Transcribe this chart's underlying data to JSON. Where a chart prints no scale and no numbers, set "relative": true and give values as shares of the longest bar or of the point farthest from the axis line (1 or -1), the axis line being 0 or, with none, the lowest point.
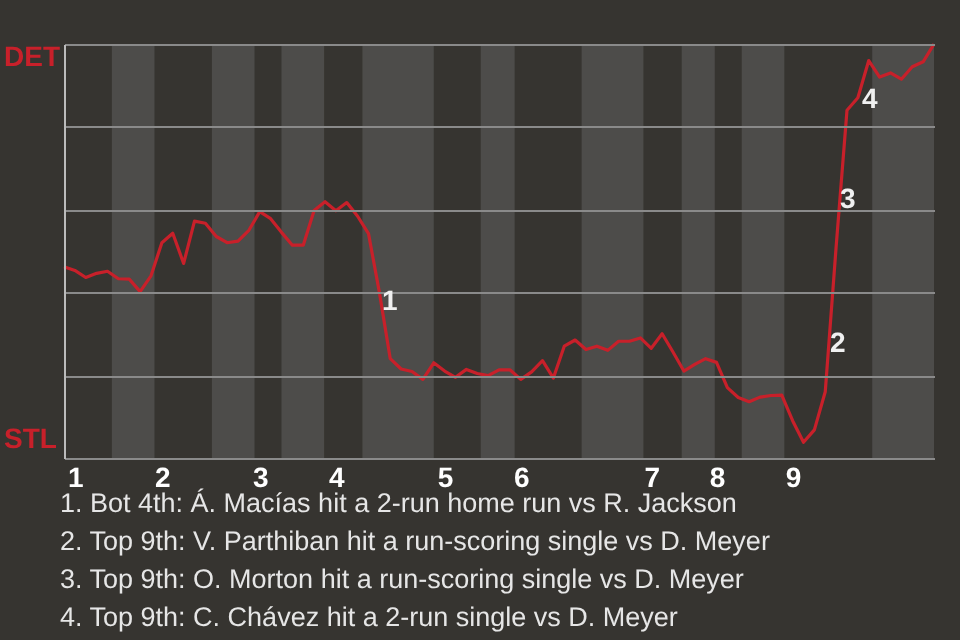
{
  "chart_data": {
    "type": "line",
    "relative": true,
    "categories": [
      null,
      "1",
      null,
      null,
      null,
      null,
      null,
      null,
      null,
      "2",
      null,
      null,
      null,
      null,
      null,
      null,
      null,
      null,
      "3",
      null,
      null,
      null,
      null,
      null,
      null,
      "4",
      null,
      null,
      null,
      null,
      null,
      null,
      null,
      null,
      null,
      "5",
      null,
      null,
      null,
      null,
      null,
      null,
      "6",
      null,
      null,
      null,
      null,
      null,
      null,
      null,
      null,
      null,
      null,
      null,
      "7",
      null,
      null,
      null,
      null,
      null,
      "8",
      null,
      null,
      null,
      null,
      null,
      null,
      "9",
      null,
      null,
      null,
      null,
      null,
      null,
      null,
      null,
      null,
      null,
      null,
      null,
      null
    ],
    "series": [
      {
        "color": "#c8202a",
        "values": [
          0.462,
          0.453,
          0.436,
          0.446,
          0.451,
          0.433,
          0.432,
          0.402,
          0.44,
          0.52,
          0.543,
          0.47,
          0.572,
          0.567,
          0.535,
          0.52,
          0.524,
          0.55,
          0.595,
          0.578,
          0.545,
          0.514,
          0.514,
          0.598,
          0.619,
          0.597,
          0.617,
          0.584,
          0.542,
          0.4,
          0.24,
          0.215,
          0.209,
          0.19,
          0.23,
          0.21,
          0.195,
          0.214,
          0.204,
          0.199,
          0.213,
          0.213,
          0.19,
          0.208,
          0.235,
          0.193,
          0.27,
          0.285,
          0.262,
          0.27,
          0.26,
          0.282,
          0.282,
          0.29,
          0.265,
          0.3,
          0.256,
          0.21,
          0.226,
          0.24,
          0.231,
          0.17,
          0.146,
          0.136,
          0.147,
          0.151,
          0.152,
          0.09,
          0.038,
          0.068,
          0.16,
          0.51,
          0.84,
          0.87,
          0.96,
          0.92,
          0.93,
          0.915,
          0.945,
          0.957,
          1.0
        ]
      }
    ],
    "grid": "y",
    "annotations": [
      "DET",
      "STL",
      "1",
      "2",
      "3",
      "4",
      "1. Bot 4th: Á. Macías hit a 2-run home run vs R. Jackson",
      "2. Top 9th: V. Parthiban hit a run-scoring single vs D. Meyer",
      "3. Top 9th: O. Morton hit a run-scoring single vs D. Meyer",
      "4. Top 9th: C. Chávez hit a 2-run single vs D. Meyer"
    ]
  }
}
